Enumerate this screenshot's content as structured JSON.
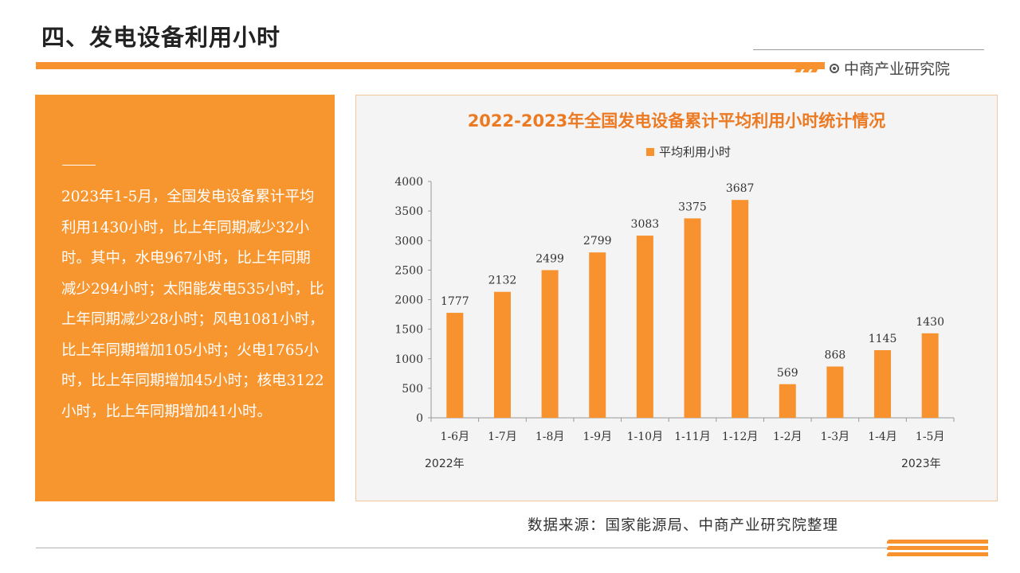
{
  "page": {
    "title": "四、发电设备利用小时",
    "brand": "中商产业研究院",
    "source": "数据来源：国家能源局、中商产业研究院整理"
  },
  "panel": {
    "text": "2023年1-5月，全国发电设备累计平均利用1430小时，比上年同期减少32小时。其中，水电967小时，比上年同期减少294小时；太阳能发电535小时，比上年同期减少28小时；风电1081小时，比上年同期增加105小时；火电1765小时，比上年同期增加45小时；核电3122小时，比上年同期增加41小时。"
  },
  "colors": {
    "accent": "#f7922e",
    "title": "#ec7a22",
    "panel_bg": "#f7952f"
  },
  "chart_data": {
    "type": "bar",
    "title": "2022-2023年全国发电设备累计平均利用小时统计情况",
    "categories": [
      "1-6月",
      "1-7月",
      "1-8月",
      "1-9月",
      "1-10月",
      "1-11月",
      "1-12月",
      "1-2月",
      "1-3月",
      "1-4月",
      "1-5月"
    ],
    "series": [
      {
        "name": "平均利用小时",
        "values": [
          1777,
          2132,
          2499,
          2799,
          3083,
          3375,
          3687,
          569,
          868,
          1145,
          1430
        ]
      }
    ],
    "group_labels": [
      "2022年",
      "2023年"
    ],
    "ylim": [
      0,
      4000
    ],
    "yticks": [
      0,
      500,
      1000,
      1500,
      2000,
      2500,
      3000,
      3500,
      4000
    ],
    "grid": false,
    "legend_position": "top"
  }
}
